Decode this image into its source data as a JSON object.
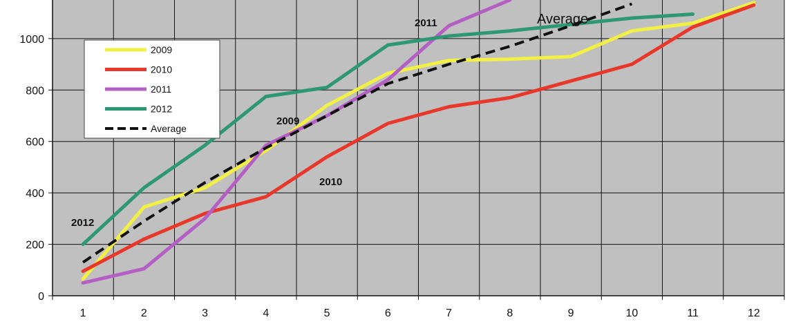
{
  "chart_data": {
    "type": "line",
    "x": [
      1,
      2,
      3,
      4,
      5,
      6,
      7,
      8,
      9,
      10,
      11,
      12
    ],
    "xlim": [
      0.5,
      12.5
    ],
    "ylim": [
      0,
      1150
    ],
    "yticks": [
      0,
      200,
      400,
      600,
      800,
      1000
    ],
    "grid": true,
    "legend_position": "top-left",
    "series": [
      {
        "name": "2009",
        "color": "#f2ef45",
        "dashed": false,
        "values": [
          65,
          345,
          420,
          565,
          740,
          865,
          915,
          920,
          930,
          1030,
          1060,
          1140
        ]
      },
      {
        "name": "2010",
        "color": "#e8382b",
        "dashed": false,
        "values": [
          95,
          220,
          320,
          385,
          540,
          670,
          735,
          770,
          835,
          900,
          1045,
          1130
        ]
      },
      {
        "name": "2011",
        "color": "#b45fc4",
        "dashed": false,
        "values": [
          50,
          105,
          300,
          585,
          700,
          840,
          1050,
          1150,
          null,
          null,
          null,
          null
        ]
      },
      {
        "name": "2012",
        "color": "#2e9774",
        "dashed": false,
        "values": [
          200,
          420,
          585,
          775,
          810,
          975,
          1010,
          1030,
          1055,
          1080,
          1095,
          null
        ]
      },
      {
        "name": "Average",
        "color": "#111111",
        "dashed": true,
        "values": [
          130,
          290,
          440,
          575,
          700,
          825,
          900,
          970,
          1050,
          1135,
          null,
          null
        ]
      }
    ],
    "annotations": [
      "2012",
      "2009",
      "2010",
      "2011",
      "Average"
    ]
  }
}
